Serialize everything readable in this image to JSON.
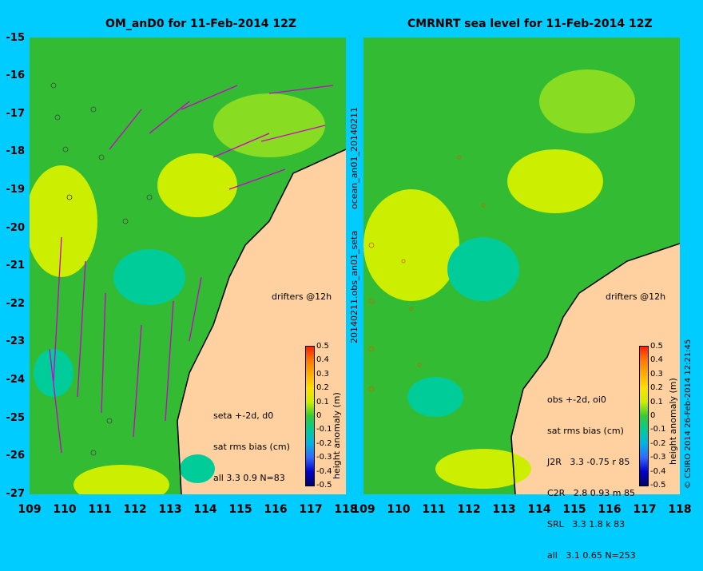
{
  "left_panel": {
    "title": "OM_anD0 for 11-Feb-2014 12Z",
    "side_label": "ocean_an01_20140211",
    "drifters_label": "drifters @12h",
    "stats_lines": [
      "seta +-2d, d0",
      "sat rms bias (cm)",
      "all 3.3 0.9 N=83"
    ]
  },
  "right_panel": {
    "title": "CMRNRT sea level  for 11-Feb-2014 12Z",
    "side_label": "20140211.obs_an01_seta",
    "drifters_label": "drifters @12h",
    "stats_lines": [
      "obs +-2d, oi0",
      "sat rms bias (cm)",
      "J2R   3.3 -0.75 r 85",
      "C2R   2.8 0.93 m 85",
      "SRL   3.3 1.8 k 83",
      "all   3.1 0.65 N=253"
    ]
  },
  "axes": {
    "lat_labels": [
      "-15",
      "-16",
      "-17",
      "-18",
      "-19",
      "-20",
      "-21",
      "-22",
      "-23",
      "-24",
      "-25",
      "-26",
      "-27"
    ],
    "lon_labels": [
      "109",
      "110",
      "111",
      "112",
      "113",
      "114",
      "115",
      "116",
      "117",
      "118"
    ]
  },
  "colorbar": {
    "label": "height anomaly (m)",
    "ticks": [
      "0.5",
      "0.4",
      "0.3",
      "0.2",
      "0.1",
      "0",
      "-0.1",
      "-0.2",
      "-0.3",
      "-0.4",
      "-0.5"
    ],
    "colors": [
      "#ff2000",
      "#ff7a00",
      "#ffb000",
      "#ffe000",
      "#ccee00",
      "#33cc33",
      "#00cc99",
      "#00b3e6",
      "#3366ff",
      "#0000cc",
      "#000066"
    ]
  },
  "credit": "© CSIRO 2014   26-Feb-2014 12:21:45",
  "colors": {
    "background": "#00ccff",
    "land": "#ffd0a0",
    "sea_base": "#33bb33",
    "drifter": "#cc00cc"
  }
}
